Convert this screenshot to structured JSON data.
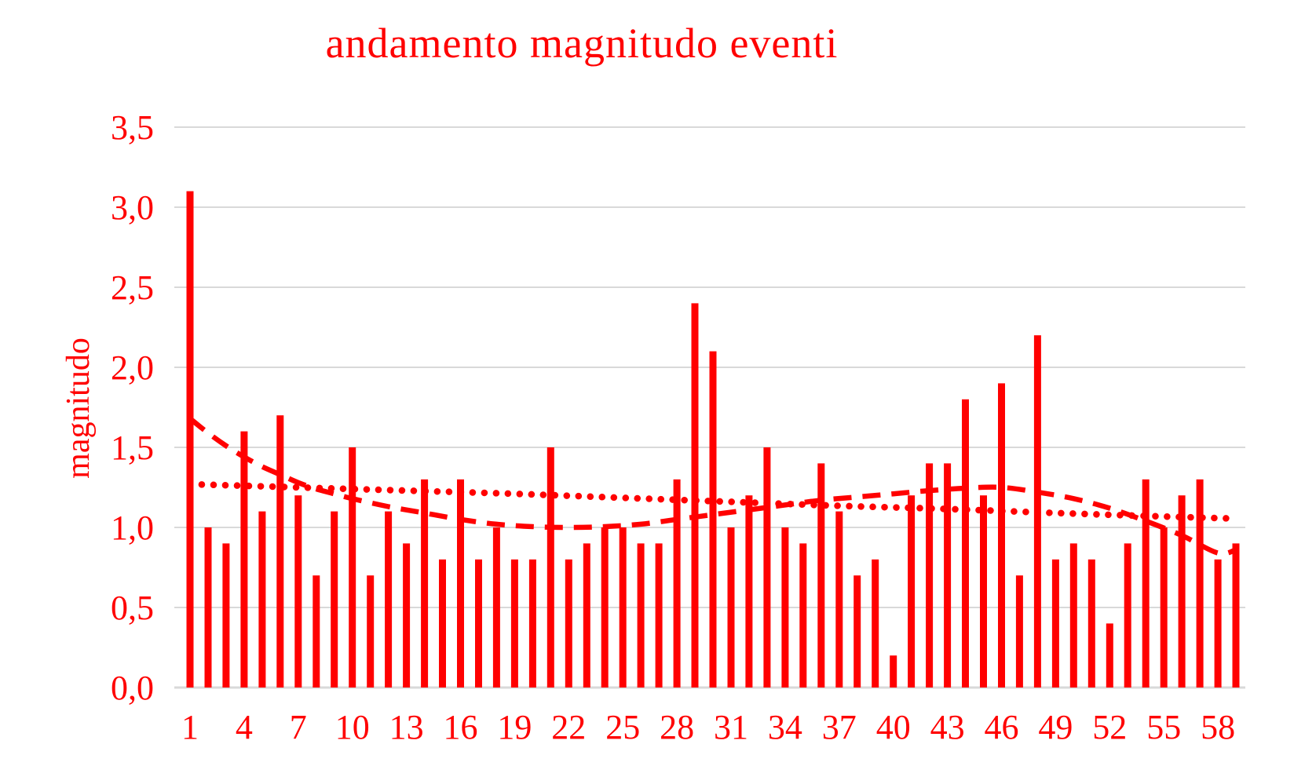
{
  "page": {
    "background": "#ffffff"
  },
  "chart_data": {
    "type": "bar",
    "title": "andamento magnitudo eventi",
    "xlabel": "",
    "ylabel": "magnitudo",
    "ylim": [
      0.0,
      3.5
    ],
    "grid": true,
    "legend": "none",
    "series_color": "#ff0000",
    "gridline_color": "#d9d9d9",
    "text_color": "#ff0000",
    "categories": [
      1,
      2,
      3,
      4,
      5,
      6,
      7,
      8,
      9,
      10,
      11,
      12,
      13,
      14,
      15,
      16,
      17,
      18,
      19,
      20,
      21,
      22,
      23,
      24,
      25,
      26,
      27,
      28,
      29,
      30,
      31,
      32,
      33,
      34,
      35,
      36,
      37,
      38,
      39,
      40,
      41,
      42,
      43,
      44,
      45,
      46,
      47,
      48,
      49,
      50,
      51,
      52,
      53,
      54,
      55,
      56,
      57,
      58,
      59
    ],
    "values": [
      3.1,
      1.0,
      0.9,
      1.6,
      1.1,
      1.7,
      1.2,
      0.7,
      1.1,
      1.5,
      0.7,
      1.1,
      0.9,
      1.3,
      0.8,
      1.3,
      0.8,
      1.0,
      0.8,
      0.8,
      1.5,
      0.8,
      0.9,
      1.0,
      1.0,
      0.9,
      0.9,
      1.3,
      2.4,
      2.1,
      1.0,
      1.2,
      1.5,
      1.0,
      0.9,
      1.4,
      1.1,
      0.7,
      0.8,
      0.2,
      1.2,
      1.4,
      1.4,
      1.8,
      1.2,
      1.9,
      0.7,
      2.2,
      0.8,
      0.9,
      0.8,
      0.4,
      0.9,
      1.3,
      1.0,
      1.2,
      1.3,
      0.8,
      0.9
    ],
    "y_ticks": {
      "values": [
        0,
        0.5,
        1.0,
        1.5,
        2.0,
        2.5,
        3.0,
        3.5
      ],
      "labels": [
        "0,0",
        "0,5",
        "1,0",
        "1,5",
        "2,0",
        "2,5",
        "3,0",
        "3,5"
      ]
    },
    "x_tick_labels": [
      "1",
      "4",
      "7",
      "10",
      "13",
      "16",
      "19",
      "22",
      "25",
      "28",
      "31",
      "34",
      "37",
      "40",
      "43",
      "46",
      "49",
      "52",
      "55",
      "58"
    ],
    "trendlines": [
      {
        "name": "trend-dashed",
        "style": "dashed",
        "color": "#ff0000",
        "x": [
          1,
          2,
          3,
          4,
          5,
          6,
          7,
          8,
          9,
          10,
          12,
          14,
          16,
          18,
          20,
          22,
          24,
          26,
          28,
          30,
          32,
          34,
          36,
          38,
          40,
          42,
          44,
          46,
          48,
          50,
          52,
          54,
          56,
          58,
          59
        ],
        "y": [
          1.68,
          1.59,
          1.51,
          1.44,
          1.38,
          1.33,
          1.28,
          1.24,
          1.21,
          1.18,
          1.13,
          1.09,
          1.05,
          1.02,
          1.005,
          1.0,
          1.005,
          1.02,
          1.05,
          1.08,
          1.11,
          1.14,
          1.17,
          1.19,
          1.21,
          1.23,
          1.245,
          1.25,
          1.22,
          1.18,
          1.12,
          1.04,
          0.95,
          0.84,
          0.86
        ]
      },
      {
        "name": "trend-dotted",
        "style": "dotted",
        "color": "#ff0000",
        "x": [
          1,
          7,
          13,
          19,
          25,
          31,
          37,
          43,
          49,
          55,
          59
        ],
        "y": [
          1.27,
          1.25,
          1.23,
          1.21,
          1.185,
          1.16,
          1.135,
          1.115,
          1.09,
          1.068,
          1.055
        ]
      }
    ]
  }
}
